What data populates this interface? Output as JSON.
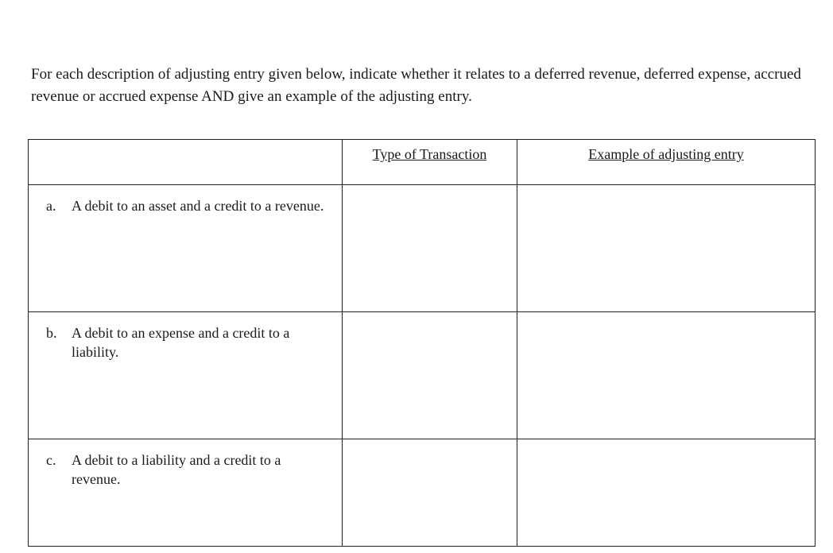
{
  "prompt_text": "For each description of adjusting entry given below, indicate whether it relates to a deferred revenue, deferred expense, accrued revenue or accrued expense AND give an example of the adjusting entry.",
  "headers": {
    "description": "",
    "type": "Type of Transaction",
    "example": "Example of adjusting entry"
  },
  "rows": [
    {
      "marker": "a.",
      "text": "A debit to an asset and a credit to a revenue.",
      "type": "",
      "example": ""
    },
    {
      "marker": "b.",
      "text": "A debit to an expense and a credit to a liability.",
      "type": "",
      "example": ""
    },
    {
      "marker": "c.",
      "text": "A debit to a liability and a credit to a revenue.",
      "type": "",
      "example": ""
    }
  ]
}
